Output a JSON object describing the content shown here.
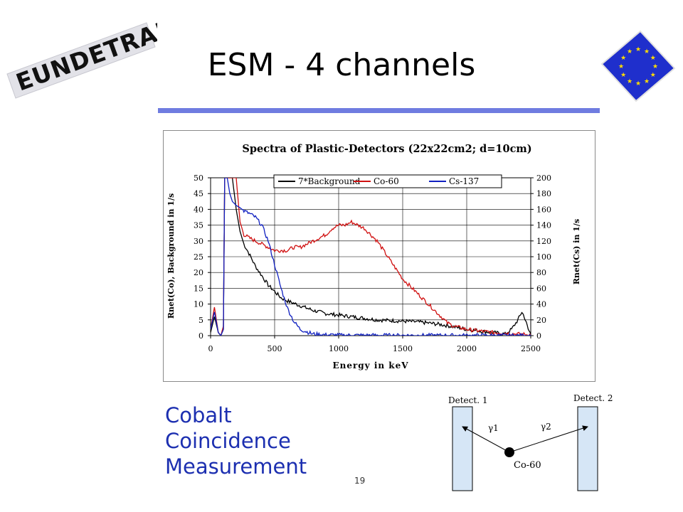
{
  "slide": {
    "title": "ESM - 4 channels",
    "page_number": "19",
    "logo_text": "EUNDETRAF",
    "caption_lines": [
      "Cobalt",
      "Coincidence",
      "Measurement"
    ],
    "colors": {
      "title_rule": "#6f7ce0",
      "caption": "#1c2fb0",
      "flag_blue": "#1f2fcc",
      "flag_star": "#ffdd00"
    }
  },
  "diagram": {
    "detector1_label": "Detect. 1",
    "detector2_label": "Detect. 2",
    "gamma1_label": "γ1",
    "gamma2_label": "γ2",
    "source_label": "Co-60"
  },
  "chart_data": {
    "type": "line",
    "title": "Spectra of Plastic-Detectors (22x22cm2; d=10cm)",
    "xlabel": "Energy in keV",
    "ylabel_left": "Rnet(Co), Background in 1/s",
    "ylabel_right": "Rnet(Cs) in 1/s",
    "xlim": [
      0,
      2500
    ],
    "ylim_left": [
      0,
      50
    ],
    "ylim_right": [
      0,
      200
    ],
    "xticks": [
      0,
      500,
      1000,
      1500,
      2000,
      2500
    ],
    "yticks_left": [
      0,
      5,
      10,
      15,
      20,
      25,
      30,
      35,
      40,
      45,
      50
    ],
    "yticks_right": [
      0,
      20,
      40,
      60,
      80,
      100,
      120,
      140,
      160,
      180,
      200
    ],
    "grid": true,
    "legend_position": "top",
    "series": [
      {
        "name": "7*Background",
        "color": "#000000",
        "axis": "left",
        "x": [
          0,
          30,
          60,
          80,
          100,
          110,
          130,
          150,
          170,
          200,
          230,
          260,
          300,
          350,
          400,
          450,
          500,
          550,
          600,
          700,
          800,
          900,
          1000,
          1100,
          1200,
          1300,
          1400,
          1500,
          1600,
          1700,
          1800,
          1900,
          2000,
          2100,
          2200,
          2300,
          2350,
          2400,
          2430,
          2450,
          2480,
          2500
        ],
        "y": [
          1,
          6,
          1,
          0,
          2,
          50,
          50,
          50,
          50,
          40,
          33,
          29,
          26,
          22,
          19,
          16,
          14,
          12,
          11,
          9.5,
          8,
          7,
          6.5,
          6,
          5.5,
          5,
          4.8,
          4.6,
          4.4,
          4,
          3.5,
          2.8,
          2,
          1.5,
          1,
          0.5,
          2,
          5,
          7.5,
          6,
          2,
          0.5
        ]
      },
      {
        "name": "Co-60",
        "color": "#d01010",
        "axis": "left",
        "x": [
          0,
          30,
          60,
          80,
          100,
          110,
          130,
          150,
          170,
          200,
          230,
          260,
          300,
          350,
          400,
          450,
          500,
          550,
          600,
          650,
          700,
          750,
          800,
          850,
          900,
          950,
          1000,
          1050,
          1100,
          1150,
          1200,
          1250,
          1300,
          1350,
          1400,
          1450,
          1500,
          1550,
          1600,
          1650,
          1700,
          1750,
          1800,
          1850,
          1900,
          2000,
          2100,
          2200,
          2300,
          2400,
          2500
        ],
        "y": [
          2,
          9,
          1,
          0,
          3,
          50,
          50,
          50,
          50,
          50,
          36,
          32,
          31,
          30,
          29,
          28,
          27,
          27,
          27,
          28,
          28,
          29,
          30,
          31,
          32,
          34,
          35,
          35,
          36,
          35,
          34,
          32,
          30,
          27,
          24,
          21,
          18,
          16,
          14,
          12,
          10,
          8,
          6,
          4,
          3,
          2,
          1.5,
          1,
          0.8,
          0.5,
          0.3
        ]
      },
      {
        "name": "Cs-137",
        "color": "#1020c0",
        "axis": "right",
        "x": [
          0,
          30,
          60,
          80,
          100,
          110,
          130,
          150,
          170,
          200,
          230,
          260,
          300,
          350,
          400,
          450,
          500,
          550,
          600,
          650,
          700,
          800,
          900,
          1000,
          1500,
          2000,
          2500
        ],
        "y": [
          8,
          30,
          4,
          0,
          8,
          200,
          200,
          180,
          170,
          165,
          162,
          158,
          155,
          150,
          140,
          120,
          90,
          60,
          35,
          18,
          8,
          2,
          1,
          0.5,
          0.3,
          0.2,
          0.1
        ]
      }
    ]
  }
}
